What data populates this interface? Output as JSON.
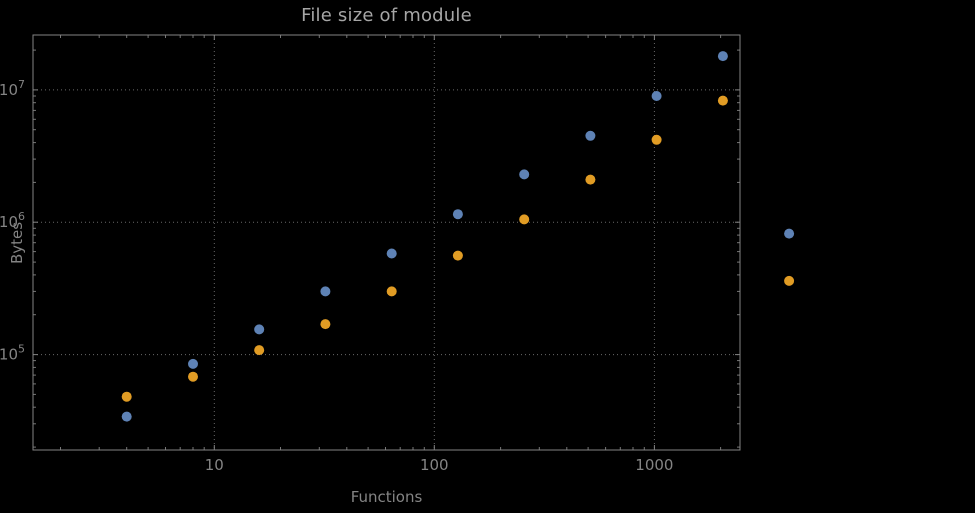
{
  "title": "File size of module",
  "colors": {
    "background": "#000000",
    "frame": "#848484",
    "grid": "#848484",
    "text": "#848484",
    "title_text": "#a6a6a6",
    "series_blue": "#5e82b5",
    "series_orange": "#e19c24"
  },
  "chart_data": {
    "type": "scatter",
    "title": "File size of module",
    "xlabel": "Functions",
    "ylabel": "Bytes",
    "xscale": "log",
    "yscale": "log",
    "xlim": [
      1.5,
      2450
    ],
    "ylim": [
      19000,
      26000000
    ],
    "grid": "dotted gridlines at decade ticks, framed plot with inward ticks on all four sides",
    "legend": "none",
    "x": [
      4,
      8,
      16,
      32,
      64,
      128,
      256,
      512,
      1024,
      2048,
      4096
    ],
    "series": [
      {
        "name": "blue",
        "color": "#5e82b5",
        "values": [
          34000,
          85000,
          155000,
          300000,
          580000,
          1150000,
          2300000,
          4500000,
          9000000,
          18000000,
          820000
        ]
      },
      {
        "name": "orange",
        "color": "#e19c24",
        "values": [
          48000,
          68000,
          108000,
          170000,
          300000,
          560000,
          1050000,
          2100000,
          4200000,
          8300000,
          360000
        ]
      }
    ],
    "x_ticks": [
      {
        "value": 10,
        "label": "10"
      },
      {
        "value": 100,
        "label": "100"
      },
      {
        "value": 1000,
        "label": "1000"
      }
    ],
    "y_ticks": [
      {
        "value": 100000,
        "base": "10",
        "exp": "5"
      },
      {
        "value": 1000000,
        "base": "10",
        "exp": "6"
      },
      {
        "value": 10000000,
        "base": "10",
        "exp": "7"
      }
    ]
  }
}
